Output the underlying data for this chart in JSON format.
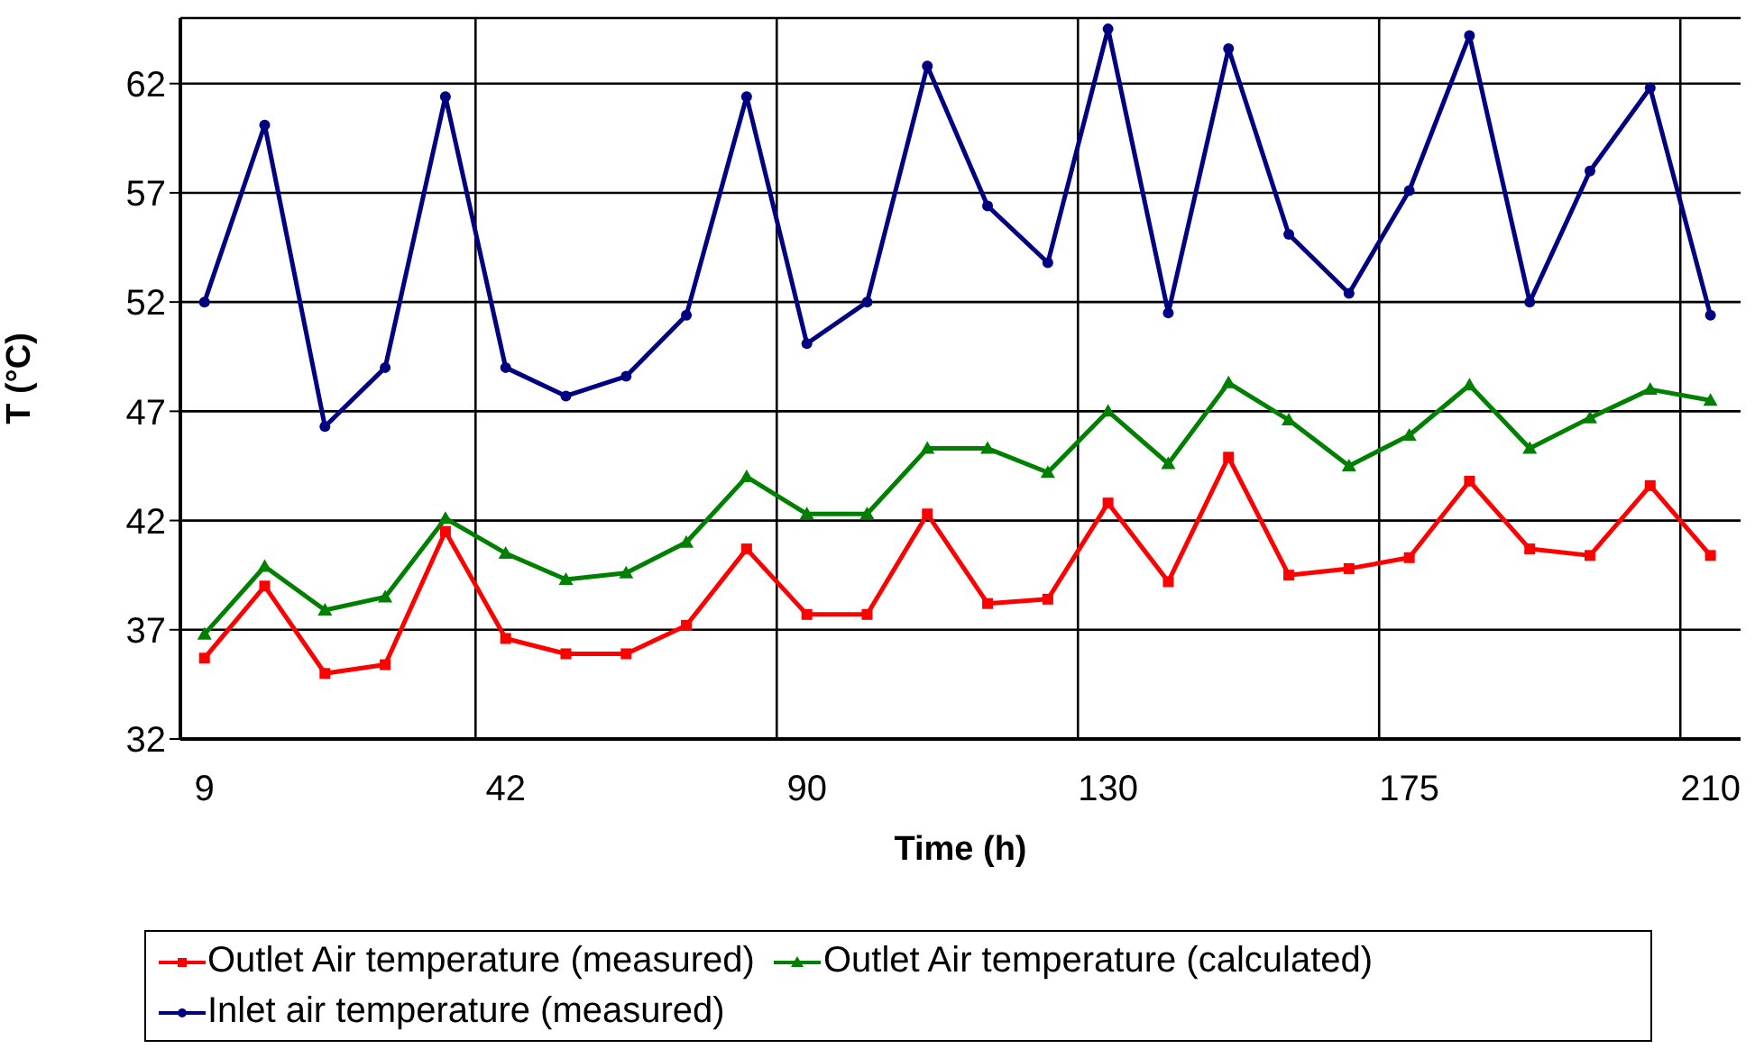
{
  "chart_data": {
    "type": "line",
    "xlabel": "Time (h)",
    "ylabel": "T (°C)",
    "categories": [
      "9",
      null,
      null,
      null,
      null,
      "42",
      null,
      null,
      null,
      null,
      "90",
      null,
      null,
      null,
      null,
      "130",
      null,
      null,
      null,
      null,
      "175",
      null,
      null,
      null,
      null,
      "210"
    ],
    "ylim": [
      32,
      65
    ],
    "yticks": [
      32,
      37,
      42,
      47,
      52,
      57,
      62
    ],
    "grid": true,
    "legend": "bottom",
    "series": [
      {
        "name": "Outlet Air temperature (measured)",
        "color": "#ff0000",
        "marker": "square",
        "values": [
          35.7,
          39.0,
          35.0,
          35.4,
          41.5,
          36.6,
          35.9,
          35.9,
          37.2,
          40.7,
          37.7,
          37.7,
          42.3,
          38.2,
          38.4,
          42.8,
          39.2,
          44.9,
          39.5,
          39.8,
          40.3,
          43.8,
          40.7,
          40.4,
          43.6,
          40.4
        ]
      },
      {
        "name": "Outlet Air temperature (calculated)",
        "color": "#008000",
        "marker": "triangle",
        "values": [
          36.8,
          39.9,
          37.9,
          38.5,
          42.1,
          40.5,
          39.3,
          39.6,
          41.0,
          44.0,
          42.3,
          42.3,
          45.3,
          45.3,
          44.2,
          47.0,
          44.6,
          48.3,
          46.6,
          44.5,
          45.9,
          48.2,
          45.3,
          46.7,
          48.0,
          47.5
        ]
      },
      {
        "name": "Inlet air temperature (measured)",
        "color": "#000080",
        "marker": "circle",
        "values": [
          52.0,
          60.1,
          46.3,
          49.0,
          61.4,
          49.0,
          47.7,
          48.6,
          51.4,
          61.4,
          50.1,
          52.0,
          62.8,
          56.4,
          53.8,
          64.5,
          51.5,
          63.6,
          55.1,
          52.4,
          57.1,
          64.2,
          52.0,
          58.0,
          61.8,
          51.4
        ]
      }
    ]
  }
}
